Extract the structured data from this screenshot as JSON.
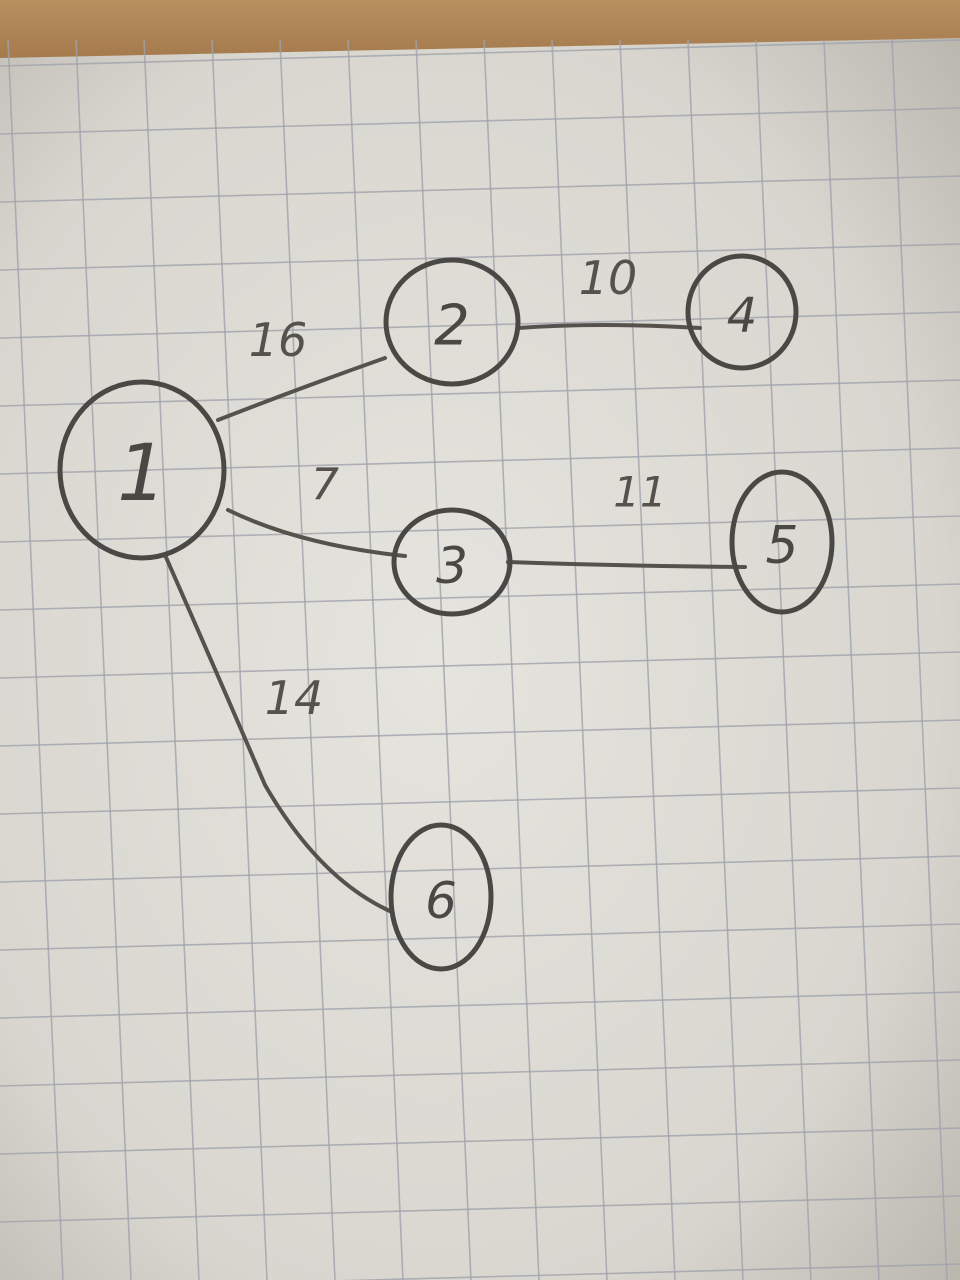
{
  "colors": {
    "paper": "#dedcd6",
    "grid": "#9fa3ab",
    "ink": "#4a4844"
  },
  "graph": {
    "nodes": [
      {
        "id": "1",
        "label": "1"
      },
      {
        "id": "2",
        "label": "2"
      },
      {
        "id": "3",
        "label": "3"
      },
      {
        "id": "4",
        "label": "4"
      },
      {
        "id": "5",
        "label": "5"
      },
      {
        "id": "6",
        "label": "6"
      }
    ],
    "edges": [
      {
        "from": "1",
        "to": "2",
        "weight": "16"
      },
      {
        "from": "1",
        "to": "3",
        "weight": "7"
      },
      {
        "from": "1",
        "to": "6",
        "weight": "14"
      },
      {
        "from": "2",
        "to": "4",
        "weight": "10"
      },
      {
        "from": "3",
        "to": "5",
        "weight": "11"
      }
    ]
  }
}
